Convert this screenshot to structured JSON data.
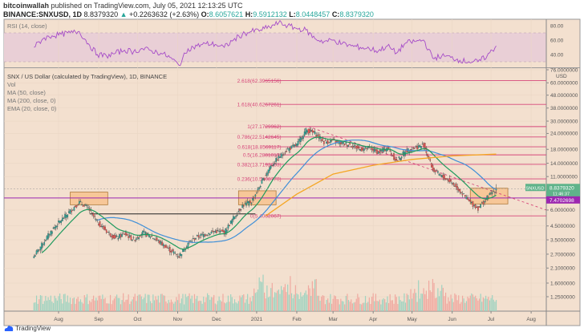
{
  "header": {
    "publisher": "bitcoinwallah",
    "published_text": "published on TradingView.com, July 05, 2021 12:13:25 UTC",
    "symbol": "BINANCE:SNXUSD, 1D",
    "last": "8.8379320",
    "change": "+0.2263632 (+2.63%)",
    "open_label": "O:",
    "open": "8.6057621",
    "high_label": "H:",
    "high": "9.5912132",
    "low_label": "L:",
    "low": "8.0448457",
    "close_label": "C:",
    "close": "8.8379320"
  },
  "legend": {
    "title": "SNX / US Dollar (calculated by TradingView), 1D, BINANCE",
    "items": [
      "Vol",
      "MA (50, close)",
      "MA (200, close, 0)",
      "EMA (20, close, 0)"
    ]
  },
  "rsi": {
    "label": "RSI (14, close)",
    "ticks": [
      "80.00",
      "60.00",
      "40.00"
    ],
    "band": [
      30,
      70
    ]
  },
  "colors": {
    "bg": "#f3e0cf",
    "up": "#26a69a",
    "down": "#ef5350",
    "ma50": "#3f8fd8",
    "ma200": "#f5a623",
    "ema20": "#1f9a5e",
    "fib": "#d6477a",
    "purple": "#9c27b0",
    "rsi": "#a64dc8",
    "box": "#f7c08a"
  },
  "brand": "TradingView",
  "chart_data": {
    "type": "candlestick",
    "scale": "log",
    "currency": "USD",
    "y_ticks": [
      "76.0000000",
      "60.0000000",
      "48.0000000",
      "38.0000000",
      "30.0000000",
      "24.0000000",
      "18.0000000",
      "14.0000000",
      "11.0000000",
      "6.0000000",
      "4.5000000",
      "3.5000000",
      "2.7000000",
      "2.1000000",
      "1.6000000",
      "1.2500000"
    ],
    "y_tick_values": [
      76,
      60,
      48,
      38,
      30,
      24,
      18,
      14,
      11,
      6,
      4.5,
      3.5,
      2.7,
      2.1,
      1.6,
      1.25
    ],
    "x_ticks": [
      "Aug",
      "Sep",
      "Oct",
      "Nov",
      "Dec",
      "2021",
      "Feb",
      "Mar",
      "Apr",
      "May",
      "Jun",
      "Jul",
      "Aug"
    ],
    "x_tick_dates": [
      "2020-08-01",
      "2020-09-01",
      "2020-10-01",
      "2020-11-01",
      "2020-12-01",
      "2021-01-01",
      "2021-02-01",
      "2021-03-01",
      "2021-04-01",
      "2021-05-01",
      "2021-06-01",
      "2021-07-01",
      "2021-08-01"
    ],
    "weekly_close": [
      [
        "2020-07-13",
        2.6
      ],
      [
        "2020-07-20",
        3.3
      ],
      [
        "2020-07-27",
        4.2
      ],
      [
        "2020-08-03",
        5.0
      ],
      [
        "2020-08-10",
        5.9
      ],
      [
        "2020-08-17",
        6.9
      ],
      [
        "2020-08-24",
        6.2
      ],
      [
        "2020-08-31",
        4.8
      ],
      [
        "2020-09-07",
        4.1
      ],
      [
        "2020-09-14",
        3.6
      ],
      [
        "2020-09-21",
        3.9
      ],
      [
        "2020-09-28",
        3.5
      ],
      [
        "2020-10-05",
        4.0
      ],
      [
        "2020-10-12",
        3.7
      ],
      [
        "2020-10-19",
        3.3
      ],
      [
        "2020-10-26",
        2.9
      ],
      [
        "2020-11-02",
        2.6
      ],
      [
        "2020-11-09",
        3.3
      ],
      [
        "2020-11-16",
        3.7
      ],
      [
        "2020-11-23",
        3.9
      ],
      [
        "2020-11-30",
        4.1
      ],
      [
        "2020-12-07",
        4.0
      ],
      [
        "2020-12-14",
        5.2
      ],
      [
        "2020-12-21",
        6.5
      ],
      [
        "2020-12-28",
        7.0
      ],
      [
        "2021-01-04",
        9.5
      ],
      [
        "2021-01-11",
        13.0
      ],
      [
        "2021-01-18",
        15.5
      ],
      [
        "2021-01-25",
        18.0
      ],
      [
        "2021-02-01",
        19.5
      ],
      [
        "2021-02-08",
        25.5
      ],
      [
        "2021-02-15",
        24.0
      ],
      [
        "2021-02-22",
        20.5
      ],
      [
        "2021-03-01",
        21.0
      ],
      [
        "2021-03-08",
        20.0
      ],
      [
        "2021-03-15",
        19.5
      ],
      [
        "2021-03-22",
        18.0
      ],
      [
        "2021-03-29",
        18.5
      ],
      [
        "2021-04-05",
        17.0
      ],
      [
        "2021-04-12",
        18.5
      ],
      [
        "2021-04-19",
        14.5
      ],
      [
        "2021-04-26",
        17.5
      ],
      [
        "2021-05-03",
        18.5
      ],
      [
        "2021-05-10",
        19.5
      ],
      [
        "2021-05-17",
        12.5
      ],
      [
        "2021-05-24",
        11.0
      ],
      [
        "2021-05-31",
        10.0
      ],
      [
        "2021-06-07",
        8.5
      ],
      [
        "2021-06-14",
        7.0
      ],
      [
        "2021-06-21",
        6.2
      ],
      [
        "2021-06-28",
        7.5
      ],
      [
        "2021-07-05",
        8.84
      ]
    ],
    "ma200": [
      [
        "2021-01-08",
        5.4
      ],
      [
        "2021-02-01",
        8.0
      ],
      [
        "2021-03-01",
        11.5
      ],
      [
        "2021-04-01",
        13.5
      ],
      [
        "2021-05-01",
        15.0
      ],
      [
        "2021-06-01",
        16.0
      ],
      [
        "2021-07-05",
        16.5
      ]
    ],
    "rsi_weekly": [
      50,
      62,
      66,
      68,
      70,
      72,
      55,
      40,
      38,
      42,
      46,
      44,
      48,
      45,
      42,
      36,
      25,
      48,
      52,
      55,
      54,
      50,
      60,
      68,
      72,
      74,
      78,
      84,
      80,
      76,
      74,
      62,
      58,
      60,
      55,
      52,
      50,
      48,
      45,
      52,
      42,
      56,
      58,
      60,
      35,
      38,
      36,
      32,
      30,
      30,
      38,
      52
    ],
    "price_label": {
      "symbol": "SNXUSD",
      "price": "8.8379320",
      "countdown": "11:46:37"
    },
    "hline_label": "7.4702698",
    "hline_value": 7.4702698,
    "fib_levels": [
      {
        "label": "2.618(62.3965156)",
        "value": 62.3965156
      },
      {
        "label": "1.618(40.6267261)",
        "value": 40.6267261
      },
      {
        "label": "1(27.1729962)",
        "value": 27.1729962
      },
      {
        "label": "0.786(22.5142645)",
        "value": 22.5142645
      },
      {
        "label": "0.618(18.8569117)",
        "value": 18.8569117
      },
      {
        "label": "0.5(16.2881015)",
        "value": 16.2881015
      },
      {
        "label": "0.382(13.7192663)",
        "value": 13.7192663
      },
      {
        "label": "0.236(10.5408770)",
        "value": 10.540877
      },
      {
        "label": "0(5.4032067)",
        "value": 5.4032067
      }
    ],
    "support_line_value": 5.6,
    "zones": [
      [
        "2020-08-10",
        "2020-09-08",
        6.6,
        8.3
      ],
      [
        "2020-12-18",
        "2021-01-16",
        6.6,
        8.5
      ],
      [
        "2021-06-15",
        "2021-07-14",
        6.7,
        8.9
      ]
    ],
    "trendline": [
      [
        "2021-02-10",
        27.2
      ],
      [
        "2021-08-25",
        6.0
      ]
    ]
  }
}
